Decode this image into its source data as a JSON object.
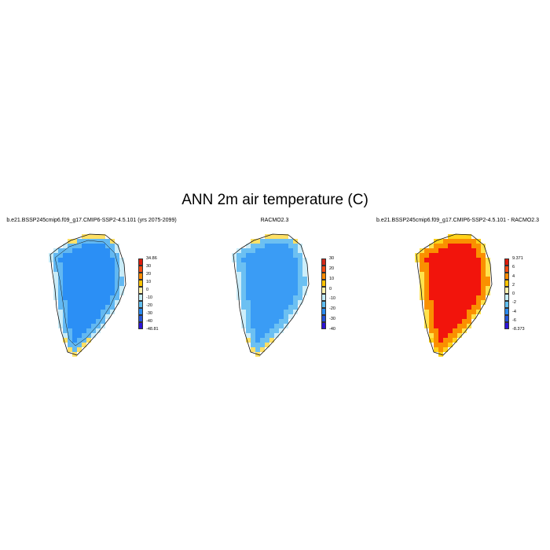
{
  "title": "ANN 2m air temperature (C)",
  "panels": [
    {
      "title": "b.e21.BSSP245cmip6.f09_g17.CMIP6-SSP2-4.5.101 (yrs 2075-2099)",
      "colorbar": {
        "labels": [
          "34.86",
          "30",
          "20",
          "10",
          "0",
          "-10",
          "-20",
          "-30",
          "-40",
          "-48.81"
        ],
        "colors": [
          "#dd1c0c",
          "#f44b12",
          "#fb8c00",
          "#ffc400",
          "#fff3b0",
          "#c6eef8",
          "#62bff0",
          "#2a8bf0",
          "#2456d8",
          "#2d14d8"
        ]
      },
      "fields": {
        "interior": "#2b8ff5",
        "middle": "#62b8f2",
        "edge": "#c9ecf8",
        "coast": "#ffe066"
      }
    },
    {
      "title": "RACMO2.3",
      "colorbar": {
        "labels": [
          "30",
          "20",
          "10",
          "0",
          "-10",
          "-20",
          "-30",
          "-40"
        ],
        "colors": [
          "#d22a1c",
          "#f24a16",
          "#fb8a00",
          "#ffc100",
          "#fff2ad",
          "#c3ecf8",
          "#5ebcf0",
          "#2a8bf0",
          "#2451d6",
          "#2c12d4"
        ]
      },
      "fields": {
        "interior": "#3a9cf5",
        "middle": "#6cc0f2",
        "edge": "#cdeefa",
        "coast": "#ffe066"
      }
    },
    {
      "title": "b.e21.BSSP245cmip6.f09_g17.CMIP6-SSP2-4.5.101 - RACMO2.3",
      "colorbar": {
        "labels": [
          "9.371",
          "6",
          "4",
          "2",
          "0",
          "-2",
          "-4",
          "-6",
          "-8.373"
        ],
        "colors": [
          "#dd1c0c",
          "#f44b12",
          "#fb8c00",
          "#ffc400",
          "#fff3b0",
          "#c6eef8",
          "#62bff0",
          "#2a8bf0",
          "#2456d8",
          "#2d14d8"
        ]
      },
      "fields": {
        "interior": "#f2140c",
        "middle": "#fa9000",
        "edge": "#ffe34d",
        "coast": "#ffd21a"
      }
    }
  ]
}
